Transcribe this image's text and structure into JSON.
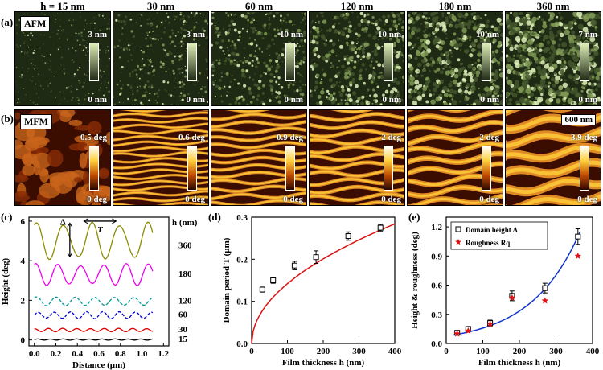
{
  "headers": {
    "thicknesses": [
      "h = 15 nm",
      "30 nm",
      "60 nm",
      "120 nm",
      "180 nm",
      "360 nm"
    ]
  },
  "panel_a": {
    "label": "(a)",
    "tag": "AFM",
    "max_labels": [
      "3 nm",
      "3 nm",
      "10 nm",
      "10 nm",
      "10 nm",
      "7 nm"
    ],
    "min_label": "0 nm"
  },
  "panel_b": {
    "label": "(b)",
    "tag": "MFM",
    "max_labels": [
      "0.5 deg",
      "0.6 deg",
      "0.9 deg",
      "2 deg",
      "2 deg",
      "3.9 deg"
    ],
    "min_label": "0 deg",
    "scale_bar": "600 nm"
  },
  "colors": {
    "afm_dark": "#1f2a14",
    "afm_light": "#dff0b8",
    "mfm_dark": "#3a0d00",
    "mfm_light": "#ffcf3a"
  },
  "chart_data": [
    {
      "id": "c",
      "panel_label": "(c)",
      "type": "line",
      "xlabel": "Distance (µm)",
      "ylabel": "Height (deg)",
      "legend_title": "h (nm)",
      "annotations": [
        "Δ",
        "T"
      ],
      "xlim": [
        -0.05,
        1.25
      ],
      "ylim": [
        -0.3,
        6.2
      ],
      "xticks": [
        "0.0",
        "0.2",
        "0.4",
        "0.6",
        "0.8",
        "1.0",
        "1.2"
      ],
      "yticks": [
        "0",
        "2",
        "4",
        "6"
      ],
      "series": [
        {
          "name": "360",
          "color": "#8b8b00",
          "dash": "",
          "offset": 5.0,
          "amp": 0.85,
          "period": 0.26,
          "phase": 0.05
        },
        {
          "name": "180",
          "color": "#ee00ee",
          "dash": "",
          "offset": 3.3,
          "amp": 0.5,
          "period": 0.21,
          "phase": 0.04
        },
        {
          "name": "120",
          "color": "#009999",
          "dash": "4,2",
          "offset": 1.95,
          "amp": 0.22,
          "period": 0.18,
          "phase": 0.02
        },
        {
          "name": "60",
          "color": "#0000cc",
          "dash": "4,2",
          "offset": 1.25,
          "amp": 0.16,
          "period": 0.15,
          "phase": 0.0
        },
        {
          "name": "30",
          "color": "#dd0000",
          "dash": "",
          "offset": 0.5,
          "amp": 0.08,
          "period": 0.13,
          "phase": 0.03
        },
        {
          "name": "15",
          "color": "#000000",
          "dash": "",
          "offset": 0.02,
          "amp": 0.03,
          "period": 0.12,
          "phase": 0.0
        }
      ]
    },
    {
      "id": "d",
      "panel_label": "(d)",
      "type": "scatter",
      "xlabel": "Film thickness h (nm)",
      "ylabel": "Domain period T (µm)",
      "xlim": [
        0,
        400
      ],
      "ylim": [
        0,
        0.3
      ],
      "xticks": [
        0,
        100,
        200,
        300,
        400
      ],
      "yticks": [
        0.0,
        0.1,
        0.2,
        0.3
      ],
      "points": [
        {
          "x": 30,
          "y": 0.128,
          "err": 0.006
        },
        {
          "x": 60,
          "y": 0.15,
          "err": 0.007
        },
        {
          "x": 120,
          "y": 0.185,
          "err": 0.01
        },
        {
          "x": 180,
          "y": 0.205,
          "err": 0.015
        },
        {
          "x": 270,
          "y": 0.255,
          "err": 0.01
        },
        {
          "x": 360,
          "y": 0.275,
          "err": 0.008
        }
      ],
      "fit": {
        "form": "a*sqrt(h)",
        "a": 0.0142,
        "color": "#dd1111"
      }
    },
    {
      "id": "e",
      "panel_label": "(e)",
      "type": "scatter",
      "xlabel": "Film thickness h (nm)",
      "ylabel": "Height & roughness (deg)",
      "xlim": [
        0,
        400
      ],
      "ylim": [
        0,
        1.3
      ],
      "xticks": [
        0,
        100,
        200,
        300,
        400
      ],
      "yticks": [
        "0.0",
        "0.3",
        "0.6",
        "0.9",
        "1.2"
      ],
      "legend": [
        "Domain height Δ",
        "Roughness Rq"
      ],
      "series": [
        {
          "name": "Domain height Δ",
          "marker": "square",
          "color": "#000000",
          "points": [
            {
              "x": 30,
              "y": 0.11,
              "err": 0.02
            },
            {
              "x": 60,
              "y": 0.15,
              "err": 0.02
            },
            {
              "x": 120,
              "y": 0.21,
              "err": 0.03
            },
            {
              "x": 180,
              "y": 0.49,
              "err": 0.05
            },
            {
              "x": 270,
              "y": 0.57,
              "err": 0.05
            },
            {
              "x": 360,
              "y": 1.1,
              "err": 0.08
            }
          ]
        },
        {
          "name": "Roughness Rq",
          "marker": "star",
          "color": "#dd1111",
          "points": [
            {
              "x": 30,
              "y": 0.1
            },
            {
              "x": 60,
              "y": 0.13
            },
            {
              "x": 120,
              "y": 0.2
            },
            {
              "x": 180,
              "y": 0.47
            },
            {
              "x": 270,
              "y": 0.44
            },
            {
              "x": 360,
              "y": 0.9
            }
          ]
        }
      ],
      "fit": {
        "form": "exponential",
        "color": "#1133cc"
      }
    }
  ]
}
